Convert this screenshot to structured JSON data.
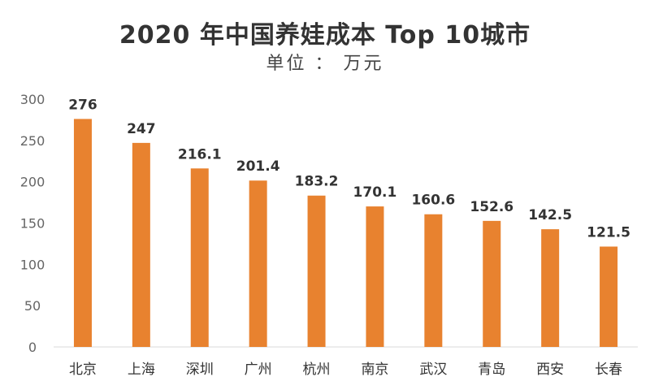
{
  "chart_data": {
    "type": "bar",
    "title": "2020 年中国养娃成本 Top 10城市",
    "subtitle": "单位 ： 万元",
    "categories": [
      "北京",
      "上海",
      "深圳",
      "广州",
      "杭州",
      "南京",
      "武汉",
      "青岛",
      "西安",
      "长春"
    ],
    "values": [
      276,
      247,
      216.1,
      201.4,
      183.2,
      170.1,
      160.6,
      152.6,
      142.5,
      121.5
    ],
    "data_labels": [
      "276",
      "247",
      "216.1",
      "201.4",
      "183.2",
      "170.1",
      "160.6",
      "152.6",
      "142.5",
      "121.5"
    ],
    "ylim": [
      0,
      300
    ],
    "yticks": [
      0,
      50,
      100,
      150,
      200,
      250,
      300
    ],
    "grid": false,
    "bar_color": "#E8822F"
  }
}
